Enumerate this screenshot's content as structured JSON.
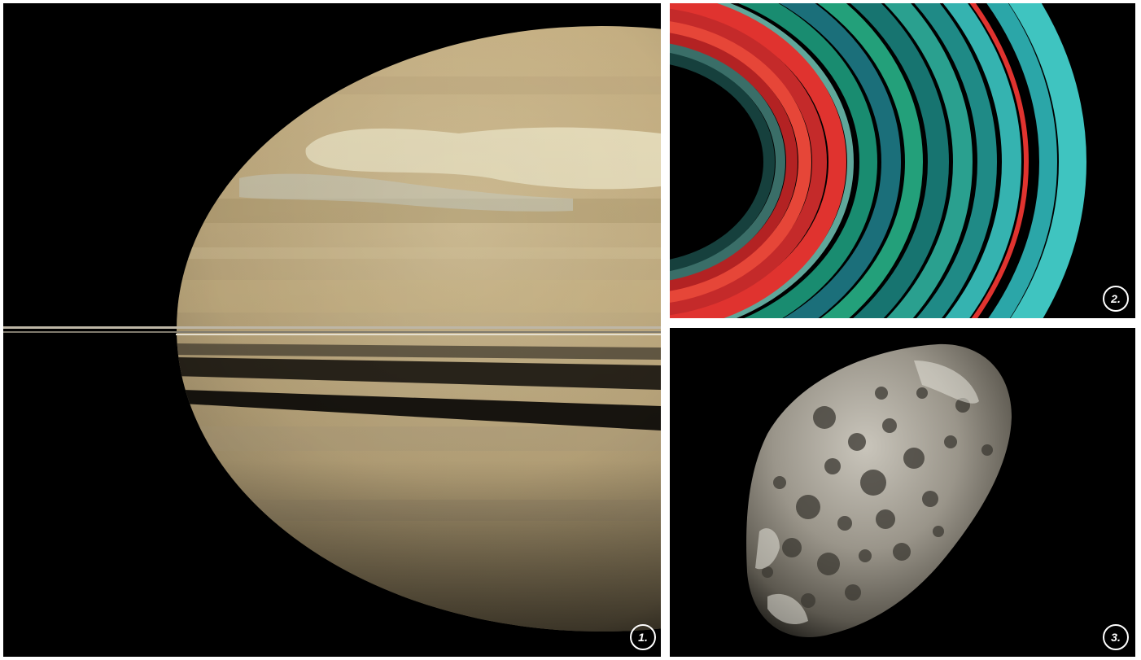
{
  "panels": [
    {
      "label": "1.",
      "subject": "saturn-planet-photo"
    },
    {
      "label": "2.",
      "subject": "saturn-rings-false-color-photo"
    },
    {
      "label": "3.",
      "subject": "hyperion-moon-photo"
    }
  ],
  "colors": {
    "background": "#ffffff",
    "space": "#000000",
    "saturn_body": "#c9b58a",
    "storm": "#efe6c6",
    "ring_cyan": "#3fc4c0",
    "ring_red": "#e0332f",
    "moon_gray": "#9a958a"
  }
}
